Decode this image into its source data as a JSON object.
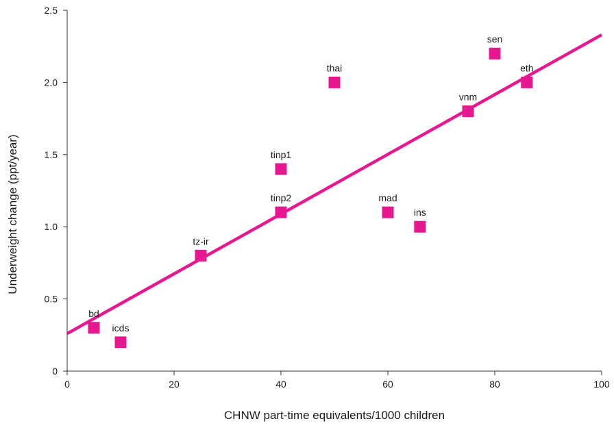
{
  "chart_data": {
    "type": "scatter",
    "title": "",
    "xlabel": "CHNW part-time equivalents/1000 children",
    "ylabel": "Underweight change (ppt/year)",
    "xlim": [
      0,
      100
    ],
    "ylim": [
      0,
      2.5
    ],
    "x_ticks": [
      0,
      20,
      40,
      60,
      80,
      100
    ],
    "x_tick_labels": [
      "0",
      "20",
      "40",
      "60",
      "80",
      "100"
    ],
    "y_ticks": [
      0,
      0.5,
      1.0,
      1.5,
      2.0,
      2.5
    ],
    "y_tick_labels": [
      "0",
      "0.5",
      "1.0",
      "1.5",
      "2.0",
      "2.5"
    ],
    "grid": false,
    "marker_color": "#e6178f",
    "line_color": "#e6178f",
    "points": [
      {
        "label": "bd",
        "x": 5,
        "y": 0.3
      },
      {
        "label": "icds",
        "x": 10,
        "y": 0.2
      },
      {
        "label": "tz-ir",
        "x": 25,
        "y": 0.8
      },
      {
        "label": "tinp2",
        "x": 40,
        "y": 1.1
      },
      {
        "label": "tinp1",
        "x": 40,
        "y": 1.4
      },
      {
        "label": "thai",
        "x": 50,
        "y": 2.0
      },
      {
        "label": "mad",
        "x": 60,
        "y": 1.1
      },
      {
        "label": "ins",
        "x": 66,
        "y": 1.0
      },
      {
        "label": "vnm",
        "x": 75,
        "y": 1.8
      },
      {
        "label": "sen",
        "x": 80,
        "y": 2.2
      },
      {
        "label": "eth",
        "x": 86,
        "y": 2.0
      }
    ],
    "trend_line": {
      "x": [
        0,
        100
      ],
      "y": [
        0.26,
        2.33
      ]
    }
  }
}
